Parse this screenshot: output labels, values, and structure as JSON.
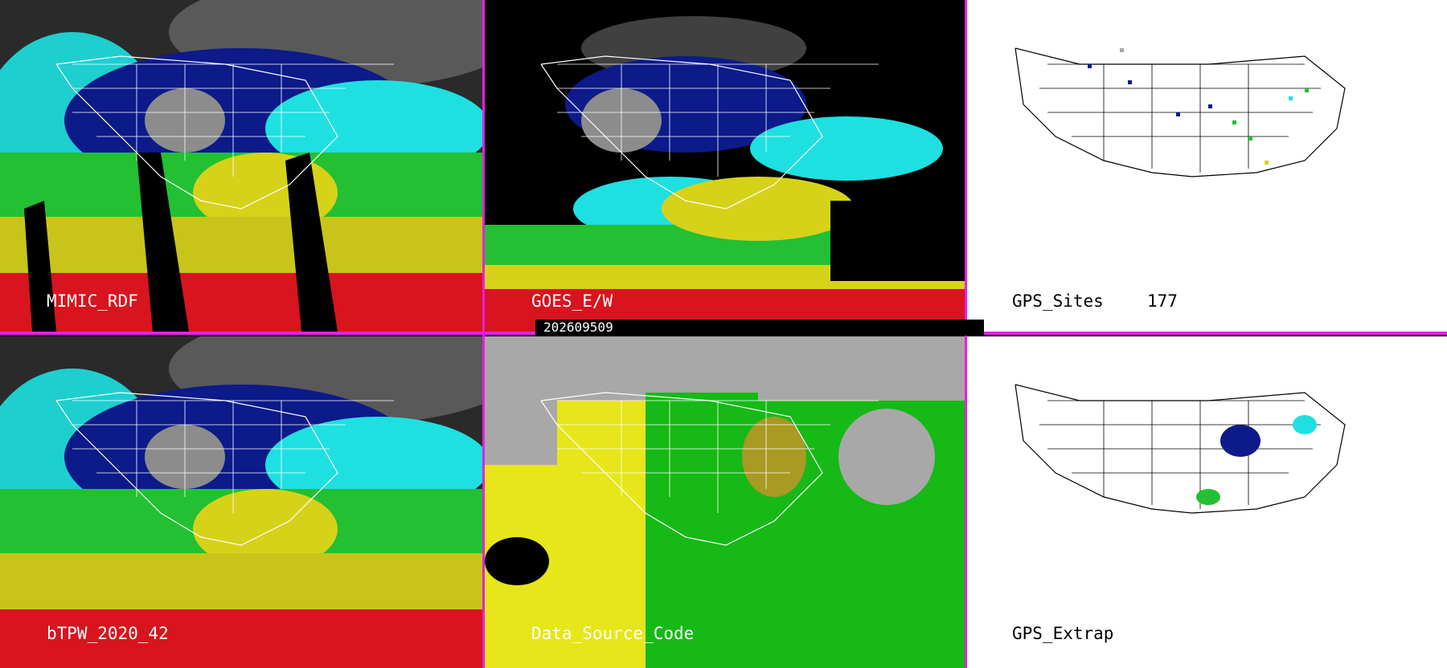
{
  "panels": {
    "mimic_rdf": {
      "label": "MIMIC_RDF"
    },
    "goes_ew": {
      "label": "GOES_E/W"
    },
    "gps_sites": {
      "label": "GPS_Sites",
      "count": "177"
    },
    "btpw": {
      "label": "bTPW_2020_42"
    },
    "data_source": {
      "label": "Data_Source_Code"
    },
    "gps_extrap": {
      "label": "GPS_Extrap"
    }
  },
  "timestamp": "202609509",
  "colors": {
    "separator": "#e81ee8",
    "tpw_dry": "#8c8c8c",
    "tpw_navy": "#0c1a8a",
    "tpw_cyan": "#1ee0e0",
    "tpw_green": "#22c032",
    "tpw_yellow": "#d6d21a",
    "tpw_red": "#d8141e",
    "source_yellow": "#e6e61a",
    "source_green": "#16b916",
    "source_gray": "#a8a8a8",
    "source_olive": "#a89a22"
  }
}
